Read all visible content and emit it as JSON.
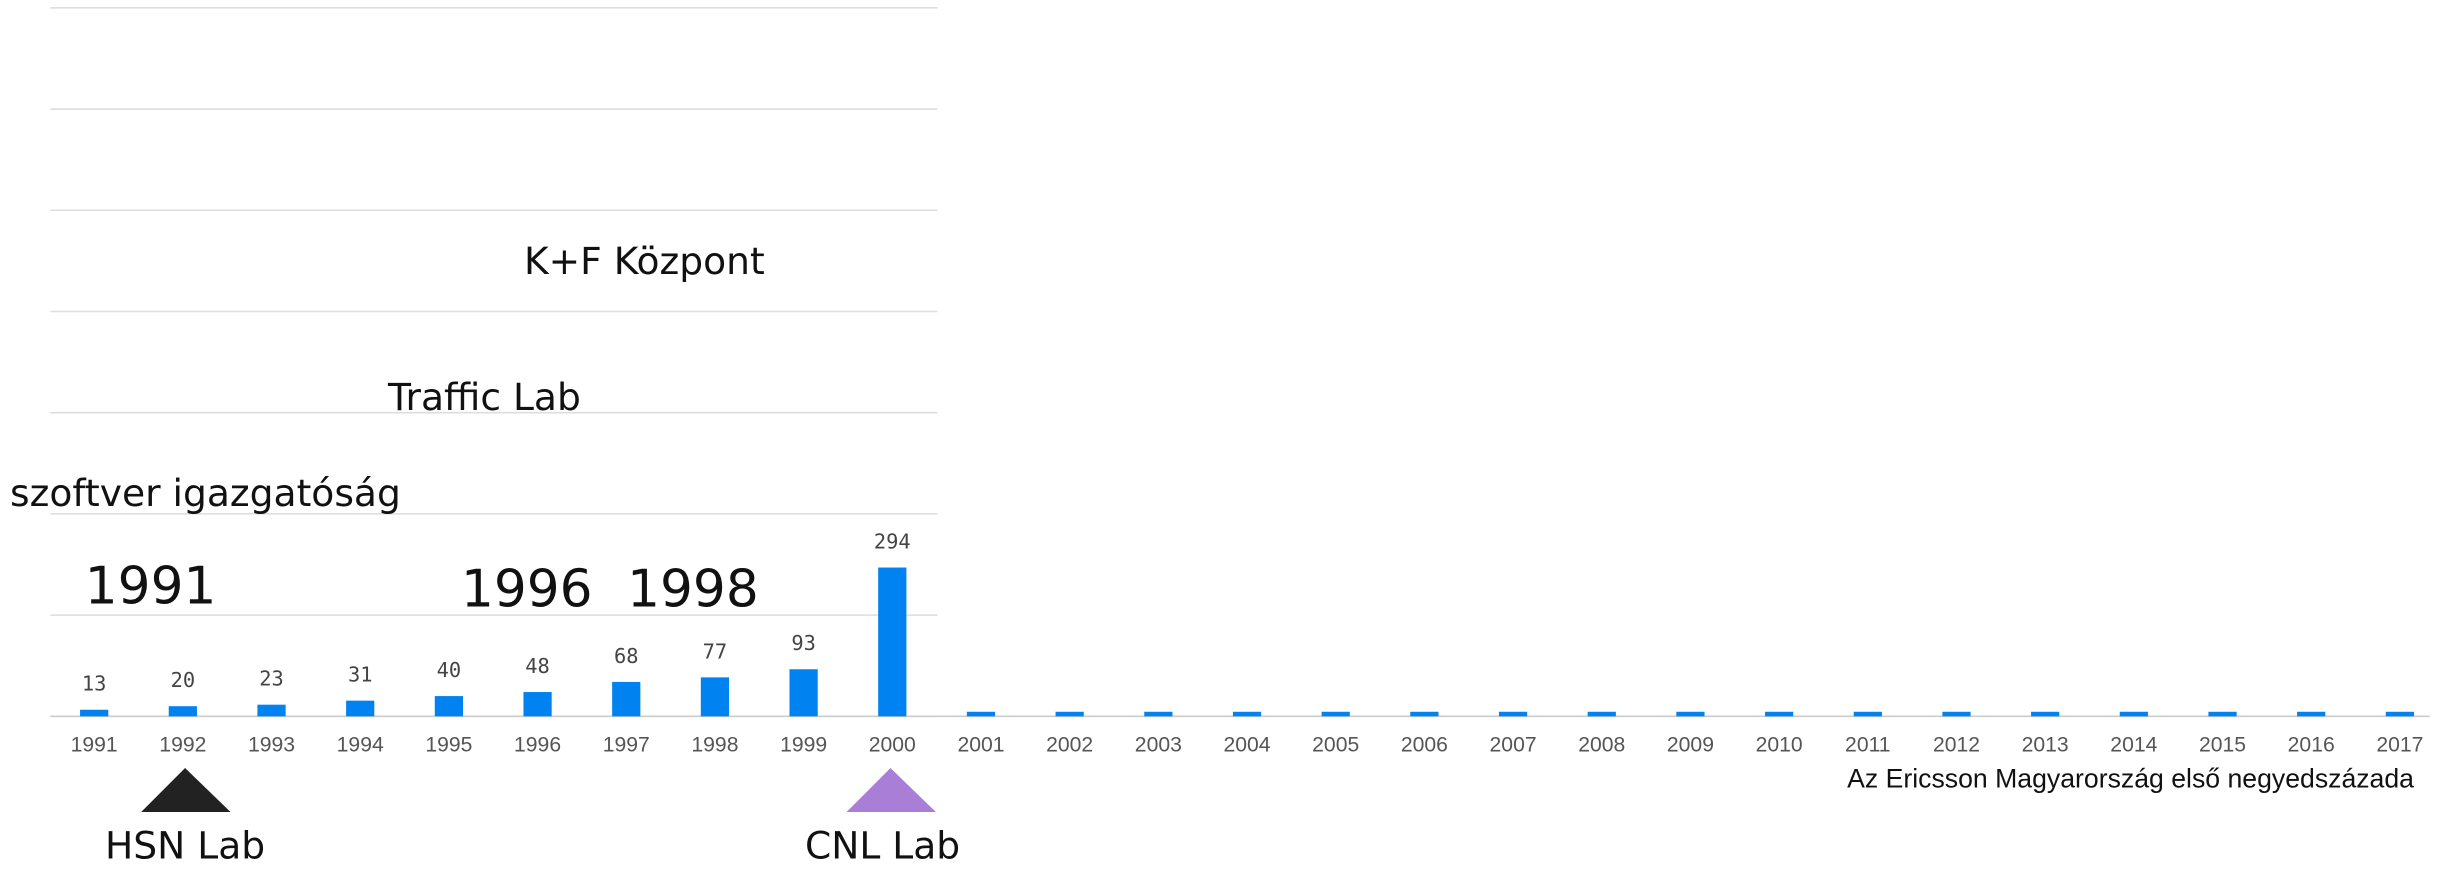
{
  "chart_data": {
    "type": "bar",
    "categories": [
      "1991",
      "1992",
      "1993",
      "1994",
      "1995",
      "1996",
      "1997",
      "1998",
      "1999",
      "2000",
      "2001",
      "2002",
      "2003",
      "2004",
      "2005",
      "2006",
      "2007",
      "2008",
      "2009",
      "2010",
      "2011",
      "2012",
      "2013",
      "2014",
      "2015",
      "2016",
      "2017"
    ],
    "series": [
      {
        "color": "#0082f0",
        "show_labels": true,
        "values": [
          13,
          20,
          23,
          31,
          40,
          48,
          68,
          77,
          93,
          294,
          null,
          null,
          null,
          null,
          null,
          null,
          null,
          null,
          null,
          null,
          null,
          null,
          null,
          null,
          null,
          null,
          null
        ]
      },
      {
        "color": "#0082f0",
        "show_labels": false,
        "values": [
          null,
          null,
          null,
          null,
          null,
          null,
          null,
          null,
          null,
          null,
          9,
          9,
          9,
          9,
          9,
          9,
          9,
          9,
          9,
          9,
          9,
          9,
          9,
          9,
          9,
          9,
          9
        ]
      }
    ],
    "ylim": [
      0,
      1400
    ],
    "yticks": [
      0,
      200,
      400,
      600,
      800,
      1000,
      1200,
      1400
    ],
    "grid": true,
    "annotations": {
      "kf": "K+F Központ",
      "traffic": "Traffic Lab",
      "szoftver": "szoftver igazgatóság",
      "y1991": "1991",
      "y1996": "1996",
      "y1998": "1998",
      "hsn": "HSN Lab",
      "cnl": "CNL Lab"
    },
    "caption": "Az Ericsson Magyarország első negyedszázada"
  }
}
